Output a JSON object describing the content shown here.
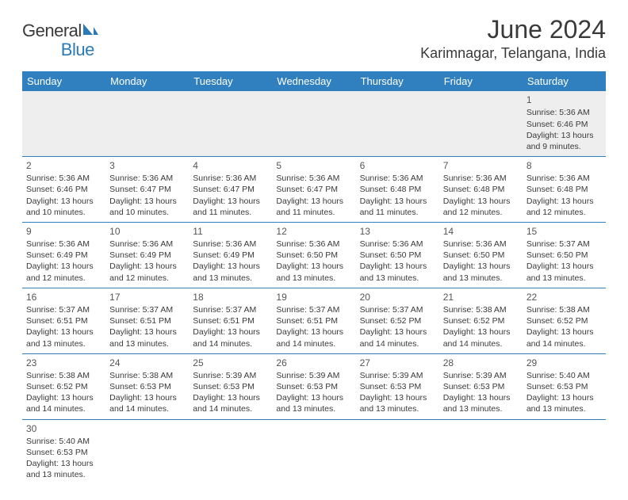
{
  "brand": {
    "part1": "General",
    "part2": "Blue"
  },
  "title": "June 2024",
  "location": "Karimnagar, Telangana, India",
  "colors": {
    "header_bg": "#3080c0",
    "header_fg": "#ffffff",
    "text": "#3a3a3a",
    "first_row_bg": "#eeeeee",
    "border": "#3080c0",
    "brand_blue": "#2a7ab8"
  },
  "weekdays": [
    "Sunday",
    "Monday",
    "Tuesday",
    "Wednesday",
    "Thursday",
    "Friday",
    "Saturday"
  ],
  "first_weekday_index": 6,
  "days": [
    {
      "n": 1,
      "sunrise": "5:36 AM",
      "sunset": "6:46 PM",
      "daylight": "13 hours and 9 minutes."
    },
    {
      "n": 2,
      "sunrise": "5:36 AM",
      "sunset": "6:46 PM",
      "daylight": "13 hours and 10 minutes."
    },
    {
      "n": 3,
      "sunrise": "5:36 AM",
      "sunset": "6:47 PM",
      "daylight": "13 hours and 10 minutes."
    },
    {
      "n": 4,
      "sunrise": "5:36 AM",
      "sunset": "6:47 PM",
      "daylight": "13 hours and 11 minutes."
    },
    {
      "n": 5,
      "sunrise": "5:36 AM",
      "sunset": "6:47 PM",
      "daylight": "13 hours and 11 minutes."
    },
    {
      "n": 6,
      "sunrise": "5:36 AM",
      "sunset": "6:48 PM",
      "daylight": "13 hours and 11 minutes."
    },
    {
      "n": 7,
      "sunrise": "5:36 AM",
      "sunset": "6:48 PM",
      "daylight": "13 hours and 12 minutes."
    },
    {
      "n": 8,
      "sunrise": "5:36 AM",
      "sunset": "6:48 PM",
      "daylight": "13 hours and 12 minutes."
    },
    {
      "n": 9,
      "sunrise": "5:36 AM",
      "sunset": "6:49 PM",
      "daylight": "13 hours and 12 minutes."
    },
    {
      "n": 10,
      "sunrise": "5:36 AM",
      "sunset": "6:49 PM",
      "daylight": "13 hours and 12 minutes."
    },
    {
      "n": 11,
      "sunrise": "5:36 AM",
      "sunset": "6:49 PM",
      "daylight": "13 hours and 13 minutes."
    },
    {
      "n": 12,
      "sunrise": "5:36 AM",
      "sunset": "6:50 PM",
      "daylight": "13 hours and 13 minutes."
    },
    {
      "n": 13,
      "sunrise": "5:36 AM",
      "sunset": "6:50 PM",
      "daylight": "13 hours and 13 minutes."
    },
    {
      "n": 14,
      "sunrise": "5:36 AM",
      "sunset": "6:50 PM",
      "daylight": "13 hours and 13 minutes."
    },
    {
      "n": 15,
      "sunrise": "5:37 AM",
      "sunset": "6:50 PM",
      "daylight": "13 hours and 13 minutes."
    },
    {
      "n": 16,
      "sunrise": "5:37 AM",
      "sunset": "6:51 PM",
      "daylight": "13 hours and 13 minutes."
    },
    {
      "n": 17,
      "sunrise": "5:37 AM",
      "sunset": "6:51 PM",
      "daylight": "13 hours and 13 minutes."
    },
    {
      "n": 18,
      "sunrise": "5:37 AM",
      "sunset": "6:51 PM",
      "daylight": "13 hours and 14 minutes."
    },
    {
      "n": 19,
      "sunrise": "5:37 AM",
      "sunset": "6:51 PM",
      "daylight": "13 hours and 14 minutes."
    },
    {
      "n": 20,
      "sunrise": "5:37 AM",
      "sunset": "6:52 PM",
      "daylight": "13 hours and 14 minutes."
    },
    {
      "n": 21,
      "sunrise": "5:38 AM",
      "sunset": "6:52 PM",
      "daylight": "13 hours and 14 minutes."
    },
    {
      "n": 22,
      "sunrise": "5:38 AM",
      "sunset": "6:52 PM",
      "daylight": "13 hours and 14 minutes."
    },
    {
      "n": 23,
      "sunrise": "5:38 AM",
      "sunset": "6:52 PM",
      "daylight": "13 hours and 14 minutes."
    },
    {
      "n": 24,
      "sunrise": "5:38 AM",
      "sunset": "6:53 PM",
      "daylight": "13 hours and 14 minutes."
    },
    {
      "n": 25,
      "sunrise": "5:39 AM",
      "sunset": "6:53 PM",
      "daylight": "13 hours and 14 minutes."
    },
    {
      "n": 26,
      "sunrise": "5:39 AM",
      "sunset": "6:53 PM",
      "daylight": "13 hours and 13 minutes."
    },
    {
      "n": 27,
      "sunrise": "5:39 AM",
      "sunset": "6:53 PM",
      "daylight": "13 hours and 13 minutes."
    },
    {
      "n": 28,
      "sunrise": "5:39 AM",
      "sunset": "6:53 PM",
      "daylight": "13 hours and 13 minutes."
    },
    {
      "n": 29,
      "sunrise": "5:40 AM",
      "sunset": "6:53 PM",
      "daylight": "13 hours and 13 minutes."
    },
    {
      "n": 30,
      "sunrise": "5:40 AM",
      "sunset": "6:53 PM",
      "daylight": "13 hours and 13 minutes."
    }
  ],
  "labels": {
    "sunrise": "Sunrise:",
    "sunset": "Sunset:",
    "daylight": "Daylight:"
  }
}
